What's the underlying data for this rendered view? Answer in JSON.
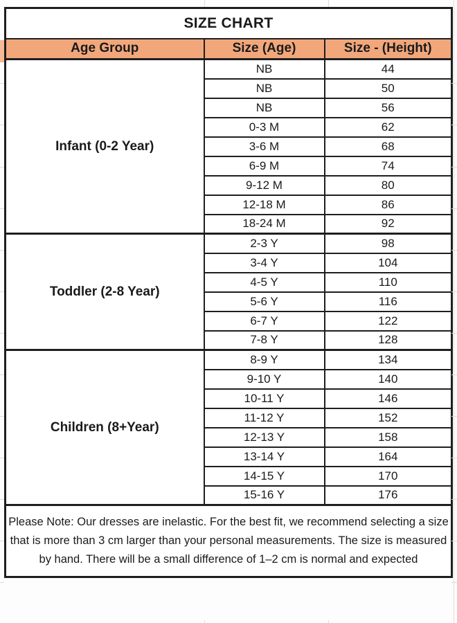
{
  "title": "SIZE CHART",
  "columns": [
    "Age Group",
    "Size (Age)",
    "Size - (Height)"
  ],
  "sections": [
    {
      "group": "Infant (0-2 Year)",
      "rows": [
        {
          "size": "NB",
          "height": "44"
        },
        {
          "size": "NB",
          "height": "50"
        },
        {
          "size": "NB",
          "height": "56"
        },
        {
          "size": "0-3 M",
          "height": "62"
        },
        {
          "size": "3-6 M",
          "height": "68"
        },
        {
          "size": "6-9 M",
          "height": "74"
        },
        {
          "size": "9-12 M",
          "height": "80"
        },
        {
          "size": "12-18 M",
          "height": "86"
        },
        {
          "size": "18-24 M",
          "height": "92"
        }
      ]
    },
    {
      "group": "Toddler (2-8 Year)",
      "rows": [
        {
          "size": "2-3 Y",
          "height": "98"
        },
        {
          "size": "3-4 Y",
          "height": "104"
        },
        {
          "size": "4-5 Y",
          "height": "110"
        },
        {
          "size": "5-6 Y",
          "height": "116"
        },
        {
          "size": "6-7 Y",
          "height": "122"
        },
        {
          "size": "7-8 Y",
          "height": "128"
        }
      ]
    },
    {
      "group": "Children (8+Year)",
      "rows": [
        {
          "size": "8-9 Y",
          "height": "134"
        },
        {
          "size": "9-10 Y",
          "height": "140"
        },
        {
          "size": "10-11 Y",
          "height": "146"
        },
        {
          "size": "11-12 Y",
          "height": "152"
        },
        {
          "size": "12-13 Y",
          "height": "158"
        },
        {
          "size": "13-14 Y",
          "height": "164"
        },
        {
          "size": "14-15 Y",
          "height": "170"
        },
        {
          "size": "15-16 Y",
          "height": "176"
        }
      ]
    }
  ],
  "note": "Please Note: Our dresses are inelastic. For the best fit, we recommend selecting a size that is more than 3 cm larger than your personal measurements. The size is measured by hand. There will be a small difference of 1–2 cm is normal and expected",
  "colors": {
    "header_fill": "#F2A77B",
    "border": "#1E1E1E",
    "gridline": "#DCDCDC"
  }
}
